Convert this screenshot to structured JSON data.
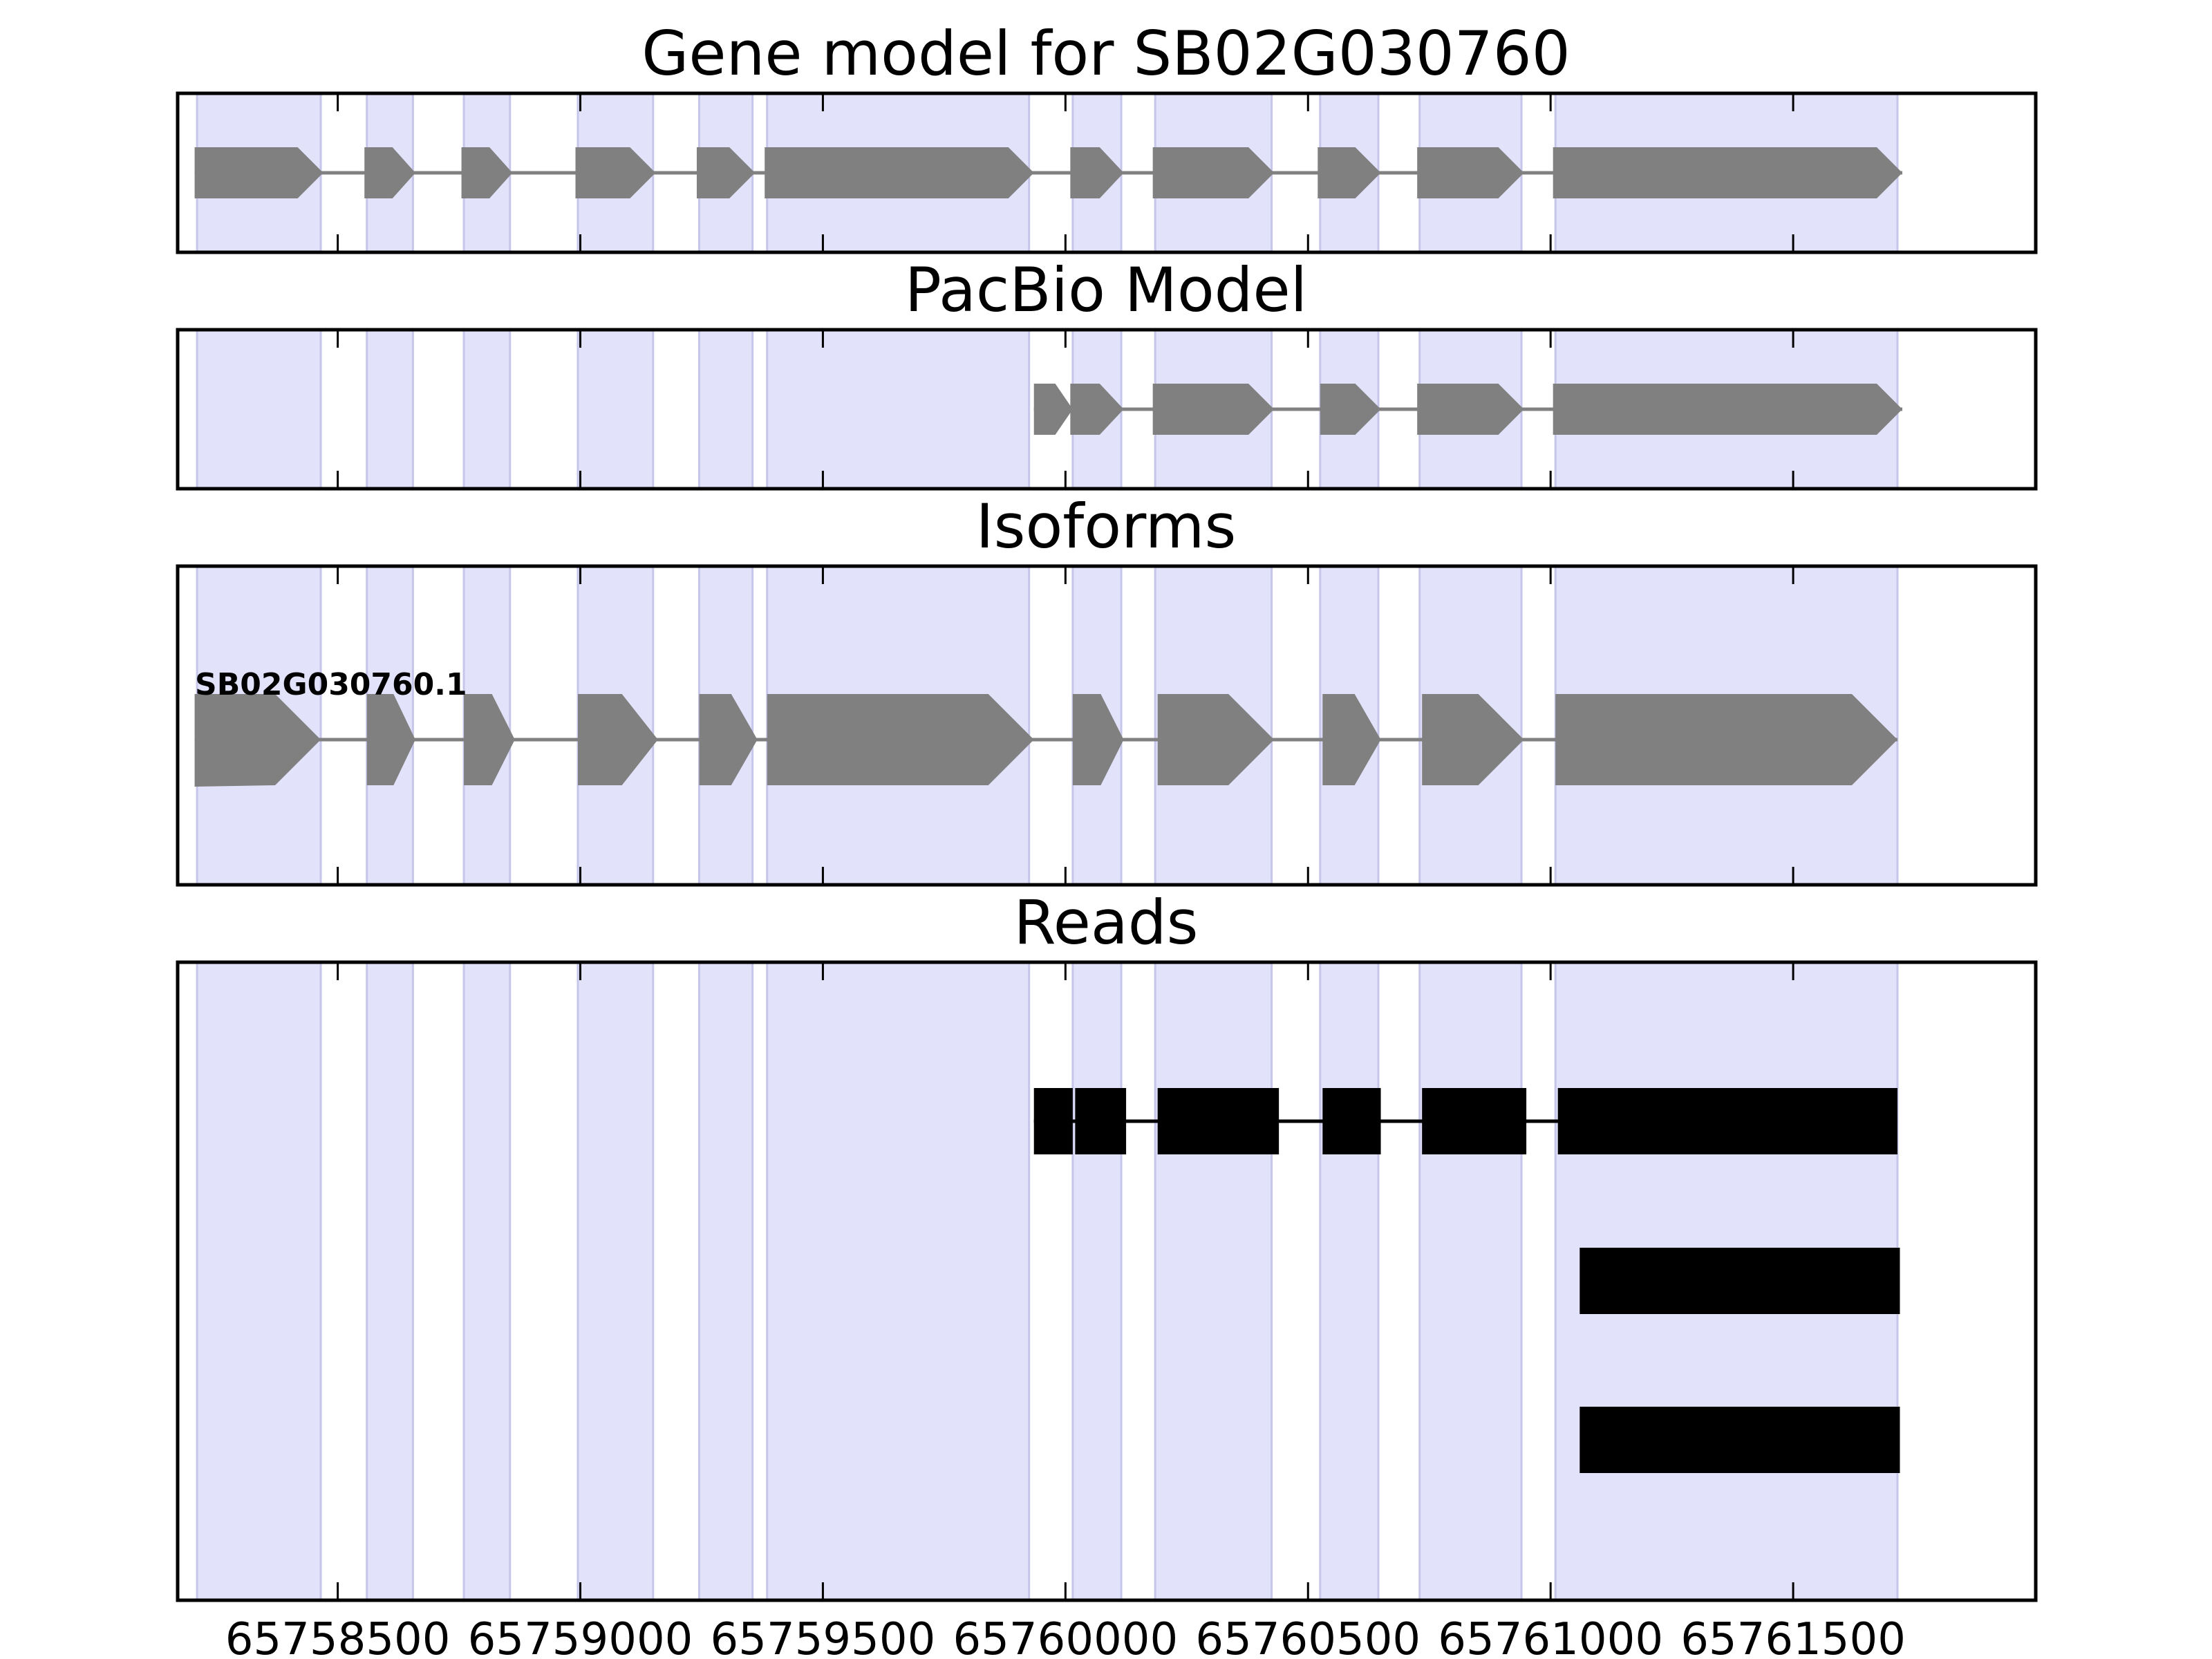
{
  "chart_data": {
    "type": "gene-track",
    "x_axis": {
      "xlim": [
        65758170,
        65762000
      ],
      "ticks": [
        65758500,
        65759000,
        65759500,
        65760000,
        65760500,
        65761000,
        65761500
      ],
      "tick_labels": [
        "65758500",
        "65759000",
        "65759500",
        "65760000",
        "65760500",
        "65761000",
        "65761500"
      ]
    },
    "shaded_exon_regions": [
      [
        65758210,
        65758465
      ],
      [
        65758560,
        65758655
      ],
      [
        65758760,
        65758855
      ],
      [
        65758995,
        65759150
      ],
      [
        65759245,
        65759355
      ],
      [
        65759385,
        65759925
      ],
      [
        65760015,
        65760115
      ],
      [
        65760185,
        65760425
      ],
      [
        65760525,
        65760645
      ],
      [
        65760730,
        65760940
      ],
      [
        65761010,
        65761715
      ]
    ],
    "colors": {
      "shade": "#e2e2fb",
      "shade_edge": "#c6c6ea",
      "feature": "#808080",
      "read": "#000000",
      "axis": "#000000"
    },
    "panels": [
      {
        "id": "gene-model",
        "title": "Gene model for SB02G030760",
        "tracks": [
          {
            "label": "",
            "exons": [
              [
                65758205,
                65758470
              ],
              [
                65758555,
                65758660
              ],
              [
                65758755,
                65758860
              ],
              [
                65758990,
                65759155
              ],
              [
                65759240,
                65759360
              ],
              [
                65759380,
                65759935
              ],
              [
                65760010,
                65760120
              ],
              [
                65760180,
                65760430
              ],
              [
                65760520,
                65760650
              ],
              [
                65760725,
                65760945
              ],
              [
                65761005,
                65761725
              ]
            ]
          }
        ]
      },
      {
        "id": "pacbio-model",
        "title": "PacBio Model",
        "tracks": [
          {
            "label": "",
            "exons": [
              [
                65759935,
                65760015
              ],
              [
                65760010,
                65760120
              ],
              [
                65760180,
                65760430
              ],
              [
                65760525,
                65760650
              ],
              [
                65760725,
                65760945
              ],
              [
                65761005,
                65761725
              ]
            ]
          }
        ]
      },
      {
        "id": "isoforms",
        "title": "Isoforms",
        "tracks": [
          {
            "label": "SB02G030760.1",
            "exons": [
              [
                65758205,
                65758465
              ],
              [
                65758560,
                65758660
              ],
              [
                65758760,
                65758865
              ],
              [
                65758995,
                65759160
              ],
              [
                65759245,
                65759365
              ],
              [
                65759385,
                65759935
              ],
              [
                65760015,
                65760120
              ],
              [
                65760190,
                65760430
              ],
              [
                65760530,
                65760650
              ],
              [
                65760735,
                65760945
              ],
              [
                65761010,
                65761715
              ]
            ]
          }
        ]
      },
      {
        "id": "reads",
        "title": "Reads",
        "reads": [
          {
            "blocks": [
              [
                65759935,
                65760015
              ],
              [
                65760020,
                65760125
              ],
              [
                65760190,
                65760440
              ],
              [
                65760530,
                65760650
              ],
              [
                65760735,
                65760950
              ],
              [
                65761015,
                65761715
              ]
            ]
          },
          {
            "blocks": [
              [
                65761060,
                65761720
              ]
            ]
          },
          {
            "blocks": [
              [
                65761060,
                65761720
              ]
            ]
          }
        ]
      }
    ]
  }
}
